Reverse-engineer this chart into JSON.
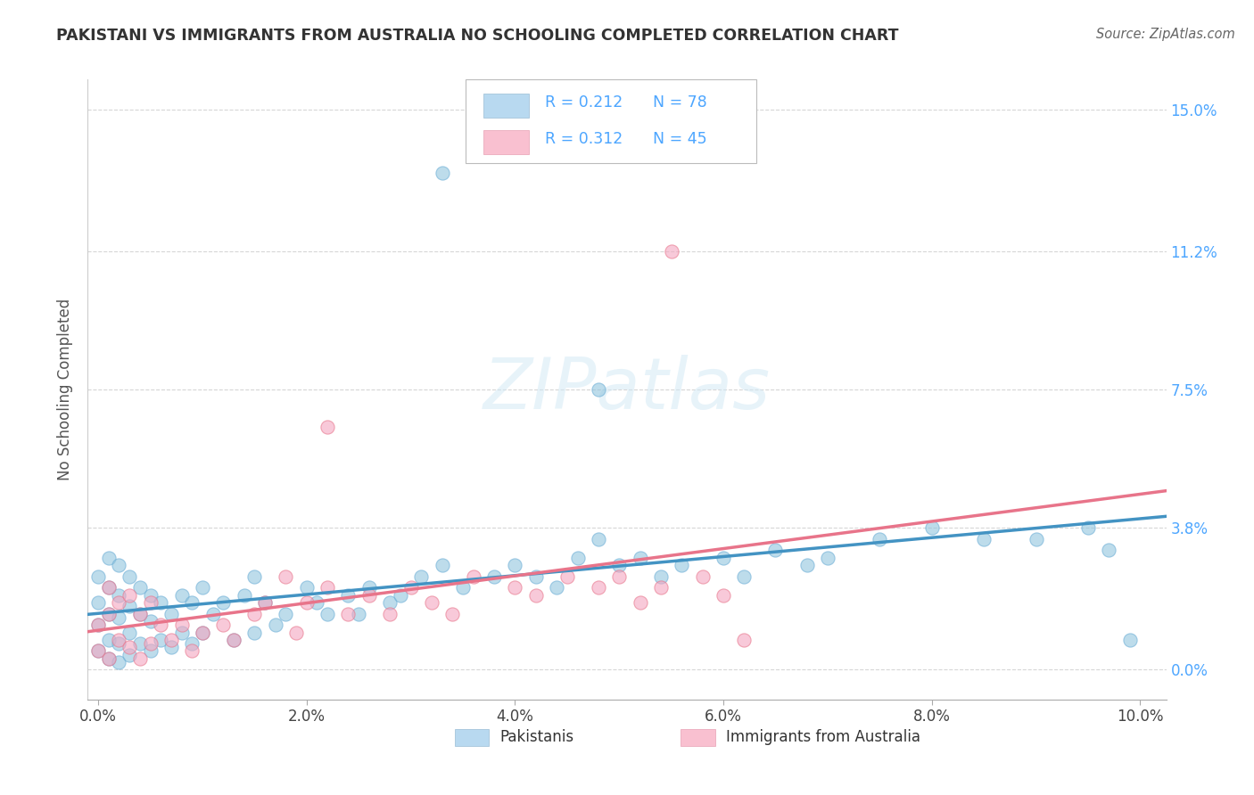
{
  "title": "PAKISTANI VS IMMIGRANTS FROM AUSTRALIA NO SCHOOLING COMPLETED CORRELATION CHART",
  "source": "Source: ZipAtlas.com",
  "ylabel": "No Schooling Completed",
  "color_blue": "#92c5de",
  "color_blue_edge": "#6baed6",
  "color_pink": "#f4a6c0",
  "color_pink_edge": "#e8748a",
  "color_blue_line": "#4393c3",
  "color_pink_line": "#e8748a",
  "watermark": "ZIPatlas",
  "xlim": [
    -0.001,
    0.1025
  ],
  "ylim": [
    -0.008,
    0.158
  ],
  "ytick_vals": [
    0.0,
    0.038,
    0.075,
    0.112,
    0.15
  ],
  "ytick_labels": [
    "0.0%",
    "3.8%",
    "7.5%",
    "11.2%",
    "15.0%"
  ],
  "xtick_vals": [
    0.0,
    0.02,
    0.04,
    0.06,
    0.08,
    0.1
  ],
  "xtick_labels": [
    "0.0%",
    "2.0%",
    "4.0%",
    "6.0%",
    "8.0%",
    "10.0%"
  ],
  "pak_x": [
    0.0,
    0.0,
    0.0,
    0.0,
    0.001,
    0.001,
    0.001,
    0.001,
    0.001,
    0.002,
    0.002,
    0.002,
    0.002,
    0.002,
    0.003,
    0.003,
    0.003,
    0.003,
    0.004,
    0.004,
    0.004,
    0.005,
    0.005,
    0.005,
    0.006,
    0.006,
    0.007,
    0.007,
    0.008,
    0.008,
    0.009,
    0.009,
    0.01,
    0.01,
    0.011,
    0.012,
    0.013,
    0.014,
    0.015,
    0.015,
    0.016,
    0.017,
    0.018,
    0.02,
    0.021,
    0.022,
    0.024,
    0.025,
    0.026,
    0.028,
    0.029,
    0.031,
    0.033,
    0.035,
    0.038,
    0.04,
    0.042,
    0.044,
    0.046,
    0.048,
    0.05,
    0.052,
    0.054,
    0.056,
    0.06,
    0.062,
    0.065,
    0.068,
    0.07,
    0.075,
    0.08,
    0.085,
    0.09,
    0.095,
    0.097,
    0.099,
    0.033,
    0.048
  ],
  "pak_y": [
    0.025,
    0.018,
    0.012,
    0.005,
    0.03,
    0.022,
    0.015,
    0.008,
    0.003,
    0.028,
    0.02,
    0.014,
    0.007,
    0.002,
    0.025,
    0.017,
    0.01,
    0.004,
    0.022,
    0.015,
    0.007,
    0.02,
    0.013,
    0.005,
    0.018,
    0.008,
    0.015,
    0.006,
    0.02,
    0.01,
    0.018,
    0.007,
    0.022,
    0.01,
    0.015,
    0.018,
    0.008,
    0.02,
    0.025,
    0.01,
    0.018,
    0.012,
    0.015,
    0.022,
    0.018,
    0.015,
    0.02,
    0.015,
    0.022,
    0.018,
    0.02,
    0.025,
    0.028,
    0.022,
    0.025,
    0.028,
    0.025,
    0.022,
    0.03,
    0.035,
    0.028,
    0.03,
    0.025,
    0.028,
    0.03,
    0.025,
    0.032,
    0.028,
    0.03,
    0.035,
    0.038,
    0.035,
    0.035,
    0.038,
    0.032,
    0.008,
    0.133,
    0.075
  ],
  "aus_x": [
    0.0,
    0.0,
    0.001,
    0.001,
    0.001,
    0.002,
    0.002,
    0.003,
    0.003,
    0.004,
    0.004,
    0.005,
    0.005,
    0.006,
    0.007,
    0.008,
    0.009,
    0.01,
    0.012,
    0.013,
    0.015,
    0.016,
    0.018,
    0.019,
    0.02,
    0.022,
    0.024,
    0.026,
    0.028,
    0.03,
    0.032,
    0.034,
    0.036,
    0.04,
    0.042,
    0.045,
    0.048,
    0.05,
    0.052,
    0.054,
    0.058,
    0.06,
    0.062,
    0.055,
    0.022
  ],
  "aus_y": [
    0.012,
    0.005,
    0.022,
    0.015,
    0.003,
    0.018,
    0.008,
    0.02,
    0.006,
    0.015,
    0.003,
    0.018,
    0.007,
    0.012,
    0.008,
    0.012,
    0.005,
    0.01,
    0.012,
    0.008,
    0.015,
    0.018,
    0.025,
    0.01,
    0.018,
    0.022,
    0.015,
    0.02,
    0.015,
    0.022,
    0.018,
    0.015,
    0.025,
    0.022,
    0.02,
    0.025,
    0.022,
    0.025,
    0.018,
    0.022,
    0.025,
    0.02,
    0.008,
    0.112,
    0.065
  ],
  "blue_line_x": [
    0.0,
    0.1025
  ],
  "blue_line_y": [
    0.015,
    0.045
  ],
  "pink_line_x": [
    0.0,
    0.1025
  ],
  "pink_line_y": [
    0.005,
    0.048
  ]
}
